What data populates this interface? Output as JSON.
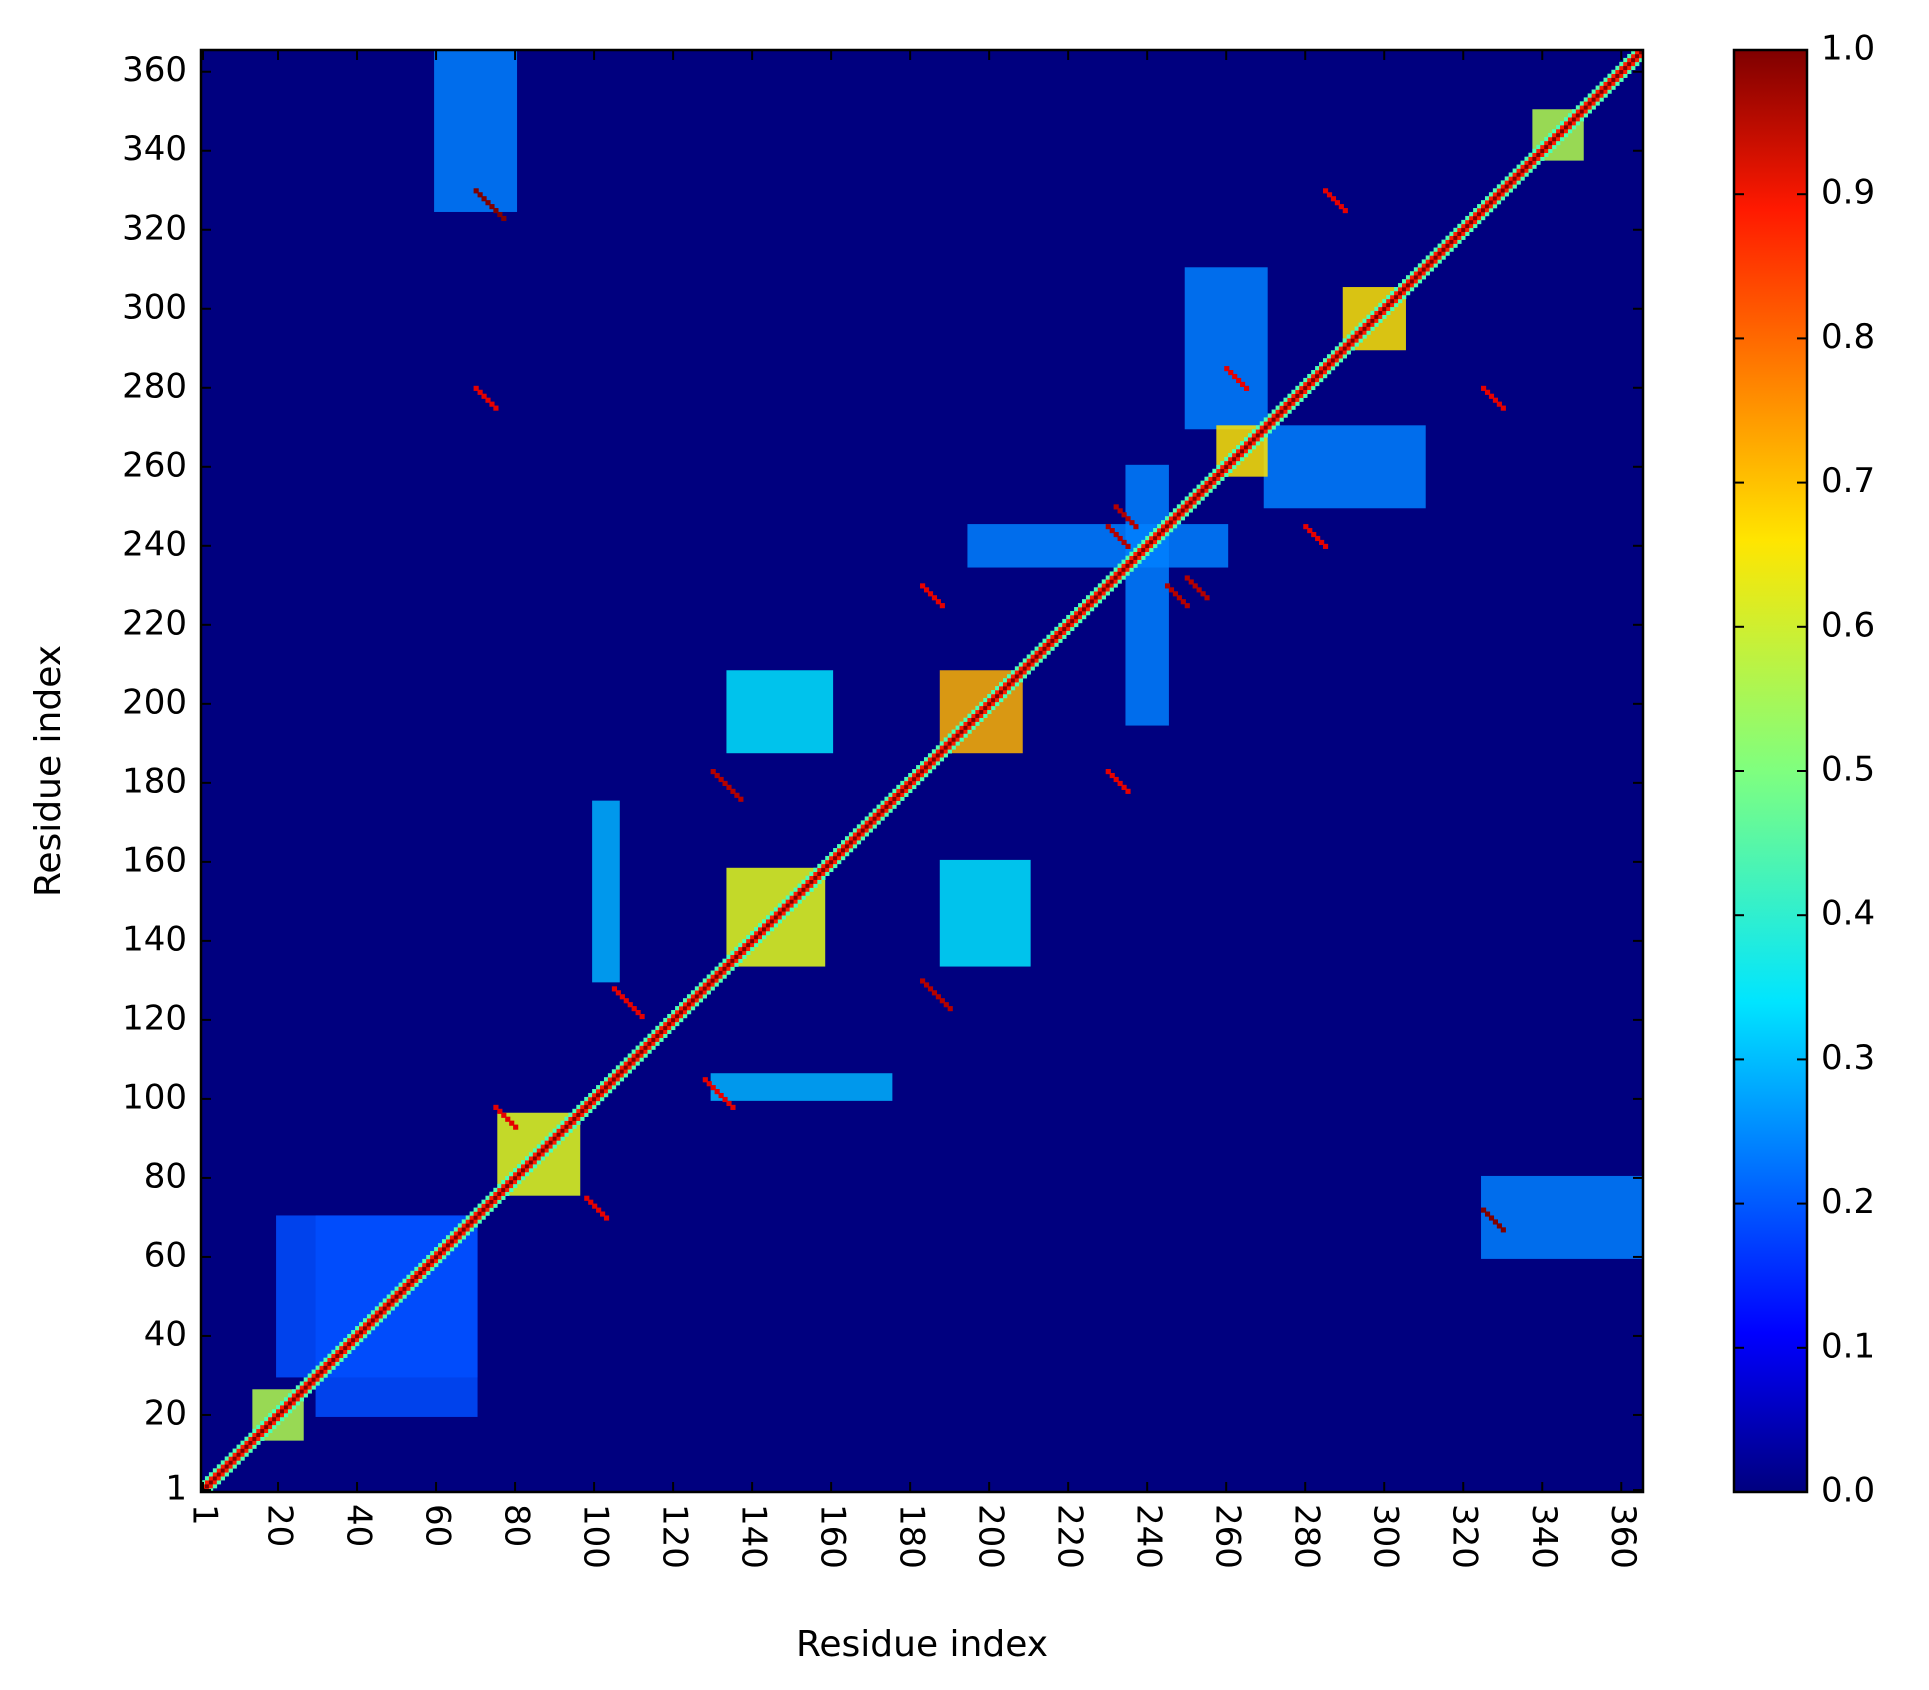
{
  "chart_data": {
    "type": "heatmap",
    "title": "",
    "xlabel": "Residue index",
    "ylabel": "Residue index",
    "n": 365,
    "xlim": [
      1,
      365
    ],
    "ylim": [
      1,
      365
    ],
    "x_ticks": [
      1,
      20,
      40,
      60,
      80,
      100,
      120,
      140,
      160,
      180,
      200,
      220,
      240,
      260,
      280,
      300,
      320,
      340,
      360
    ],
    "y_ticks": [
      1,
      20,
      40,
      60,
      80,
      100,
      120,
      140,
      160,
      180,
      200,
      220,
      240,
      260,
      280,
      300,
      320,
      340,
      360
    ],
    "x_tick_labels": [
      "1",
      "20",
      "40",
      "60",
      "80",
      "100",
      "120",
      "140",
      "160",
      "180",
      "200",
      "220",
      "240",
      "260",
      "280",
      "300",
      "320",
      "340",
      "360"
    ],
    "y_tick_labels": [
      "1",
      "20",
      "40",
      "60",
      "80",
      "100",
      "120",
      "140",
      "160",
      "180",
      "200",
      "220",
      "240",
      "260",
      "280",
      "300",
      "320",
      "340",
      "360"
    ],
    "colormap": "jet",
    "colorbar": {
      "range": [
        0.0,
        1.0
      ],
      "ticks": [
        0.0,
        0.1,
        0.2,
        0.3,
        0.4,
        0.5,
        0.6,
        0.7,
        0.8,
        0.9,
        1.0
      ],
      "tick_labels": [
        "0.0",
        "0.1",
        "0.2",
        "0.3",
        "0.4",
        "0.5",
        "0.6",
        "0.7",
        "0.8",
        "0.9",
        "1.0"
      ]
    },
    "diagonal_value": 1.0,
    "high_blocks": [
      {
        "x": [
          14,
          26
        ],
        "y": [
          14,
          26
        ],
        "value": 0.55
      },
      {
        "x": [
          76,
          96
        ],
        "y": [
          76,
          96
        ],
        "value": 0.6
      },
      {
        "x": [
          134,
          158
        ],
        "y": [
          134,
          158
        ],
        "value": 0.6
      },
      {
        "x": [
          188,
          208
        ],
        "y": [
          188,
          208
        ],
        "value": 0.7
      },
      {
        "x": [
          258,
          270
        ],
        "y": [
          258,
          270
        ],
        "value": 0.65
      },
      {
        "x": [
          290,
          305
        ],
        "y": [
          290,
          305
        ],
        "value": 0.65
      },
      {
        "x": [
          338,
          350
        ],
        "y": [
          338,
          350
        ],
        "value": 0.55
      }
    ],
    "medium_blocks": [
      {
        "x": [
          134,
          160
        ],
        "y": [
          188,
          208
        ],
        "value": 0.35
      },
      {
        "x": [
          188,
          210
        ],
        "y": [
          134,
          160
        ],
        "value": 0.35
      },
      {
        "x": [
          100,
          106
        ],
        "y": [
          130,
          175
        ],
        "value": 0.3
      },
      {
        "x": [
          130,
          175
        ],
        "y": [
          100,
          106
        ],
        "value": 0.3
      },
      {
        "x": [
          60,
          80
        ],
        "y": [
          325,
          365
        ],
        "value": 0.25
      },
      {
        "x": [
          325,
          365
        ],
        "y": [
          60,
          80
        ],
        "value": 0.25
      },
      {
        "x": [
          20,
          70
        ],
        "y": [
          30,
          70
        ],
        "value": 0.2
      },
      {
        "x": [
          30,
          70
        ],
        "y": [
          20,
          70
        ],
        "value": 0.2
      },
      {
        "x": [
          270,
          310
        ],
        "y": [
          250,
          270
        ],
        "value": 0.25
      },
      {
        "x": [
          250,
          270
        ],
        "y": [
          270,
          310
        ],
        "value": 0.25
      },
      {
        "x": [
          235,
          245
        ],
        "y": [
          195,
          260
        ],
        "value": 0.25
      },
      {
        "x": [
          195,
          260
        ],
        "y": [
          235,
          245
        ],
        "value": 0.25
      }
    ],
    "off_diagonal_contacts": [
      {
        "i": 70,
        "j": 330,
        "length": 8,
        "value": 1.0
      },
      {
        "i": 70,
        "j": 280,
        "length": 6,
        "value": 0.9
      },
      {
        "i": 130,
        "j": 183,
        "length": 8,
        "value": 0.95
      },
      {
        "i": 128,
        "j": 105,
        "length": 8,
        "value": 0.9
      },
      {
        "i": 98,
        "j": 75,
        "length": 6,
        "value": 0.9
      },
      {
        "i": 183,
        "j": 230,
        "length": 6,
        "value": 0.9
      },
      {
        "i": 230,
        "j": 183,
        "length": 6,
        "value": 0.9
      },
      {
        "i": 230,
        "j": 245,
        "length": 6,
        "value": 0.95
      },
      {
        "i": 250,
        "j": 232,
        "length": 6,
        "value": 0.95
      },
      {
        "i": 280,
        "j": 245,
        "length": 6,
        "value": 0.9
      },
      {
        "i": 260,
        "j": 285,
        "length": 6,
        "value": 0.9
      },
      {
        "i": 325,
        "j": 280,
        "length": 6,
        "value": 0.9
      },
      {
        "i": 325,
        "j": 72,
        "length": 6,
        "value": 1.0
      },
      {
        "i": 285,
        "j": 330,
        "length": 6,
        "value": 0.9
      },
      {
        "i": 105,
        "j": 128,
        "length": 8,
        "value": 0.9
      },
      {
        "i": 75,
        "j": 98,
        "length": 6,
        "value": 0.9
      },
      {
        "i": 183,
        "j": 130,
        "length": 8,
        "value": 0.95
      },
      {
        "i": 245,
        "j": 230,
        "length": 6,
        "value": 0.95
      },
      {
        "i": 232,
        "j": 250,
        "length": 6,
        "value": 0.95
      }
    ]
  }
}
